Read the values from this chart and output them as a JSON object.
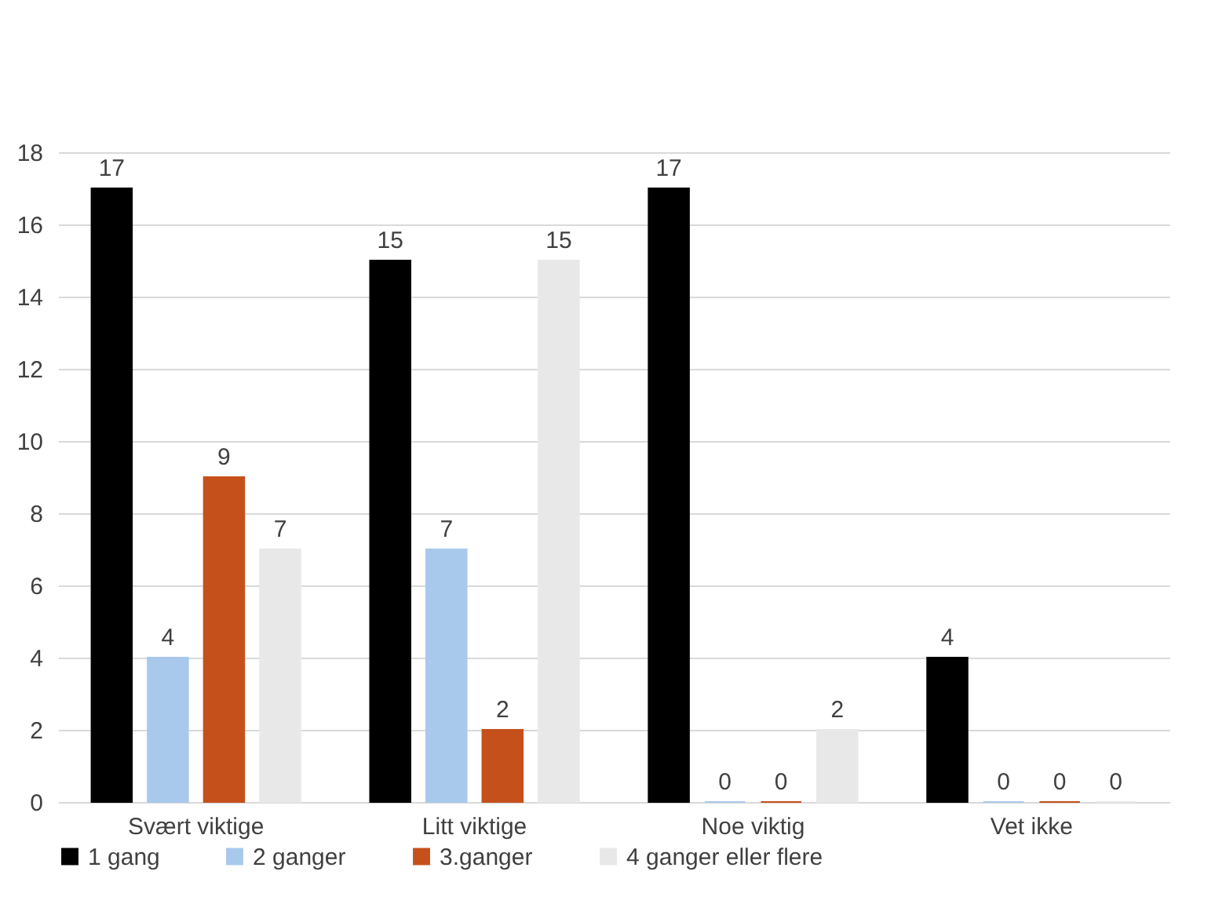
{
  "chart_data": {
    "type": "bar",
    "categories": [
      "Svært viktige",
      "Litt viktige",
      "Noe viktig",
      "Vet ikke"
    ],
    "series": [
      {
        "name": "1 gang",
        "color": "#000000",
        "values": [
          17,
          15,
          17,
          4
        ]
      },
      {
        "name": "2 ganger",
        "color": "#a9c9ec",
        "values": [
          4,
          7,
          0,
          0
        ]
      },
      {
        "name": "3.ganger",
        "color": "#c5501c",
        "values": [
          9,
          2,
          0,
          0
        ]
      },
      {
        "name": "4 ganger eller flere",
        "color": "#e8e8e8",
        "values": [
          7,
          15,
          2,
          0
        ]
      }
    ],
    "ylim": [
      0,
      18
    ],
    "yticks": [
      0,
      2,
      4,
      6,
      8,
      10,
      12,
      14,
      16,
      18
    ],
    "grid": "y",
    "legend": "bottom",
    "data_labels": true
  }
}
